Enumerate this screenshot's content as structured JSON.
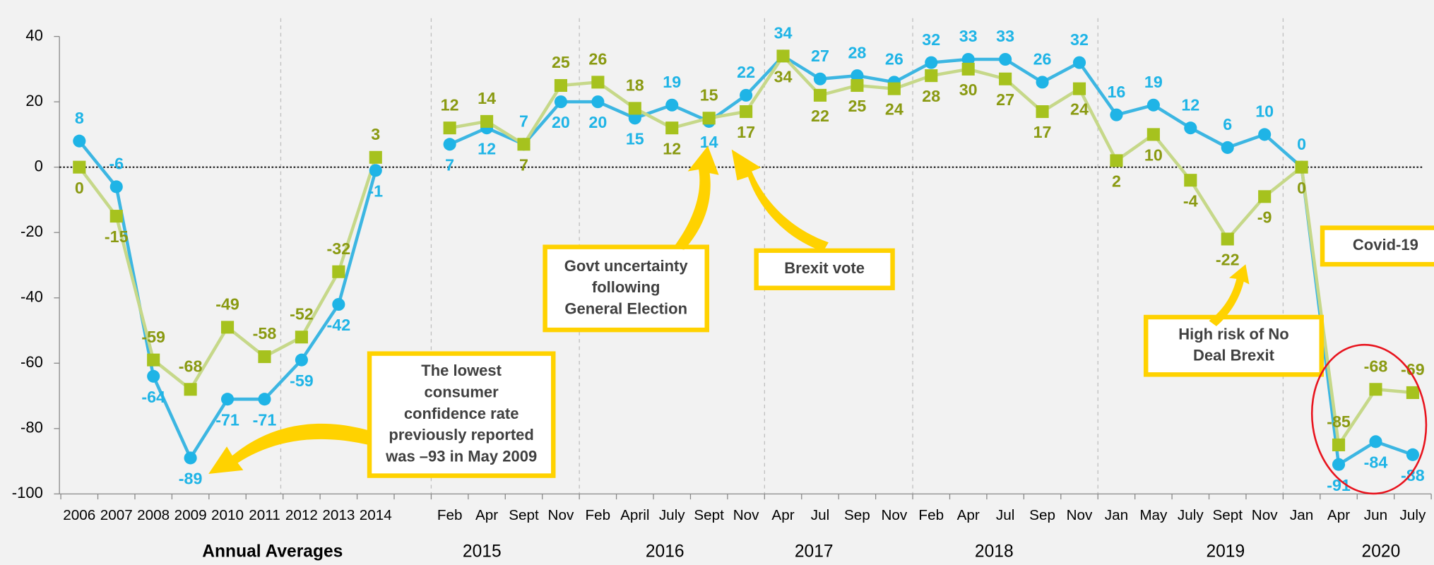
{
  "chart_data": {
    "type": "line",
    "categories": [
      "2006",
      "2007",
      "2008",
      "2009",
      "2010",
      "2011",
      "2012",
      "2013",
      "2014",
      null,
      "Feb",
      "Apr",
      "Sept",
      "Nov",
      "Feb",
      "April",
      "July",
      "Sept",
      "Nov",
      "Apr",
      "Jul",
      "Sep",
      "Nov",
      "Feb",
      "Apr",
      "Jul",
      "Sep",
      "Nov",
      "Jan",
      "May",
      "July",
      "Sept",
      "Nov",
      "Jan",
      "Apr",
      "Jun",
      "July"
    ],
    "series": [
      {
        "color": "#1fb4e6",
        "line_color": "#3cb6e2",
        "label_color": "#1fb4e6",
        "marker": "circle",
        "values": [
          8,
          -6,
          -64,
          -89,
          -71,
          -71,
          -59,
          -42,
          -1,
          null,
          7,
          12,
          7,
          20,
          20,
          15,
          19,
          14,
          22,
          34,
          27,
          28,
          26,
          32,
          33,
          33,
          26,
          32,
          16,
          19,
          12,
          6,
          10,
          0,
          -91,
          -84,
          -88
        ]
      },
      {
        "color": "#a6c21e",
        "line_color": "#c6d889",
        "label_color": "#8a9a12",
        "marker": "square",
        "values": [
          0,
          -15,
          -59,
          -68,
          -49,
          -58,
          -52,
          -32,
          3,
          null,
          12,
          14,
          7,
          25,
          26,
          18,
          12,
          15,
          17,
          34,
          22,
          25,
          24,
          28,
          30,
          27,
          17,
          24,
          2,
          10,
          -4,
          -22,
          -9,
          0,
          -85,
          -68,
          -69
        ]
      }
    ],
    "groups": [
      "Annual Averages",
      "2015",
      "2016",
      "2017",
      "2018",
      "2019",
      "2020"
    ],
    "annotations": [
      {
        "lines": [
          "Govt uncertainty",
          "following",
          "General Election"
        ]
      },
      {
        "lines": [
          "Brexit vote"
        ]
      },
      {
        "lines": [
          "The lowest",
          "consumer",
          "confidence rate",
          "previously reported",
          "was –93 in May 2009"
        ]
      },
      {
        "lines": [
          "High risk of No",
          "Deal Brexit"
        ]
      },
      {
        "lines": [
          "Covid-19"
        ]
      }
    ],
    "ylim": [
      -100,
      40
    ],
    "yticks": [
      40,
      20,
      0,
      -20,
      -40,
      -60,
      -80,
      -100
    ]
  }
}
